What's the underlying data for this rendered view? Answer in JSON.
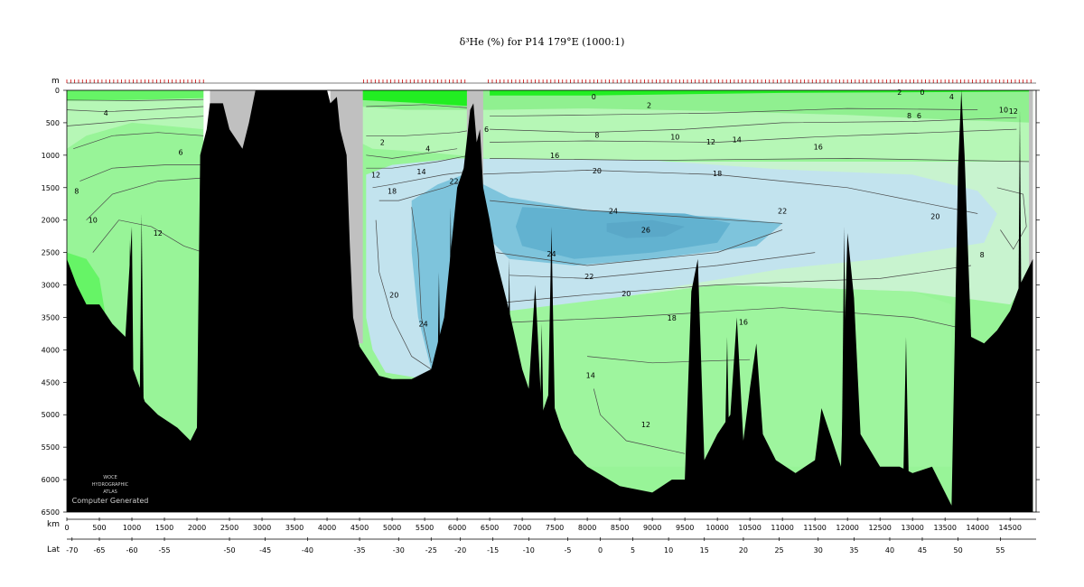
{
  "chart_data": {
    "type": "contour",
    "title": "δ³He (%) for P14 179°E (1000:1)",
    "y_axis": {
      "unit_label": "m",
      "range": [
        0,
        6500
      ],
      "ticks": [
        0,
        500,
        1000,
        1500,
        2000,
        2500,
        3000,
        3500,
        4000,
        4500,
        5000,
        5500,
        6000,
        6500
      ]
    },
    "x_axis": {
      "unit_label": "km",
      "range": [
        0,
        14900
      ],
      "ticks": [
        0,
        500,
        1000,
        1500,
        2000,
        2500,
        3000,
        3500,
        4000,
        4500,
        5000,
        5500,
        6000,
        6500,
        7000,
        7500,
        8000,
        8500,
        9000,
        9500,
        10000,
        10500,
        11000,
        11500,
        12000,
        12500,
        13000,
        13500,
        14000,
        14500
      ]
    },
    "lat_axis": {
      "unit_label": "Lat",
      "ticks": [
        [
          80,
          -70
        ],
        [
          500,
          -65
        ],
        [
          1000,
          -60
        ],
        [
          1500,
          -55
        ],
        [
          2500,
          -50
        ],
        [
          3050,
          -45
        ],
        [
          3700,
          -40
        ],
        [
          4500,
          -35
        ],
        [
          5100,
          -30
        ],
        [
          5600,
          -25
        ],
        [
          6050,
          -20
        ],
        [
          6550,
          -15
        ],
        [
          7100,
          -10
        ],
        [
          7700,
          -5
        ],
        [
          8200,
          0
        ],
        [
          8700,
          5
        ],
        [
          9250,
          10
        ],
        [
          9800,
          15
        ],
        [
          10400,
          20
        ],
        [
          10950,
          25
        ],
        [
          11550,
          30
        ],
        [
          12100,
          35
        ],
        [
          12650,
          40
        ],
        [
          13150,
          45
        ],
        [
          13700,
          50
        ],
        [
          14350,
          55
        ]
      ]
    },
    "contour_levels": [
      0,
      2,
      4,
      6,
      8,
      10,
      12,
      14,
      16,
      18,
      20,
      22,
      24,
      26
    ],
    "fill_colors": {
      "surface": "#22ee22",
      "low": "#66f466",
      "mid": "#98f498",
      "upper": "#b6f7b6",
      "pale": "#c8f3cf",
      "blue1": "#c2e3ee",
      "blue2": "#7ec4dc",
      "blue3": "#62b2d0",
      "bottom": "#000000",
      "land": "#c0c0c0"
    },
    "contour_labels": [
      [
        600,
        350,
        "4"
      ],
      [
        1750,
        950,
        "6"
      ],
      [
        150,
        1550,
        "8"
      ],
      [
        400,
        2000,
        "10"
      ],
      [
        1400,
        2200,
        "12"
      ],
      [
        4850,
        800,
        "2"
      ],
      [
        5550,
        900,
        "4"
      ],
      [
        4750,
        1300,
        "12"
      ],
      [
        5450,
        1250,
        "14"
      ],
      [
        5000,
        1550,
        "18"
      ],
      [
        5950,
        1400,
        "22"
      ],
      [
        5030,
        3150,
        "20"
      ],
      [
        5480,
        3600,
        "24"
      ],
      [
        6450,
        600,
        "6"
      ],
      [
        8100,
        100,
        "0"
      ],
      [
        8950,
        230,
        "2"
      ],
      [
        8150,
        690,
        "8"
      ],
      [
        9350,
        720,
        "10"
      ],
      [
        9900,
        790,
        "12"
      ],
      [
        10300,
        760,
        "14"
      ],
      [
        7500,
        1000,
        "16"
      ],
      [
        8150,
        1240,
        "20"
      ],
      [
        10000,
        1280,
        "18"
      ],
      [
        11550,
        870,
        "16"
      ],
      [
        8400,
        1860,
        "24"
      ],
      [
        8900,
        2150,
        "26"
      ],
      [
        7450,
        2520,
        "24"
      ],
      [
        11000,
        1860,
        "22"
      ],
      [
        13350,
        1940,
        "20"
      ],
      [
        8030,
        2870,
        "22"
      ],
      [
        8600,
        3130,
        "20"
      ],
      [
        9300,
        3510,
        "18"
      ],
      [
        10400,
        3570,
        "16"
      ],
      [
        8050,
        4390,
        "14"
      ],
      [
        8900,
        5150,
        "12"
      ],
      [
        12800,
        30,
        "2"
      ],
      [
        13150,
        30,
        "0"
      ],
      [
        13600,
        100,
        "4"
      ],
      [
        13100,
        390,
        "6"
      ],
      [
        12950,
        390,
        "8"
      ],
      [
        14400,
        300,
        "10"
      ],
      [
        14550,
        320,
        "12"
      ],
      [
        14070,
        2530,
        "8"
      ]
    ]
  },
  "axis_labels": {
    "depth_unit": "m",
    "dist_unit": "km",
    "lat_unit": "Lat"
  },
  "watermark": {
    "line1": "WOCE",
    "line2": "HYDROGRAPHIC",
    "line3": "ATLAS",
    "line4": "Computer Generated"
  }
}
